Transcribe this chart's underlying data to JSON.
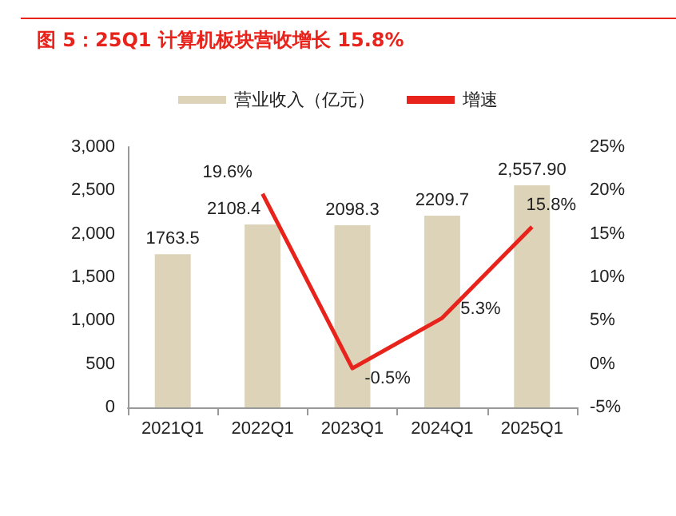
{
  "chart_data": {
    "type": "bar",
    "title": "图 5：25Q1 计算机板块营收增长 15.8%",
    "categories": [
      "2021Q1",
      "2022Q1",
      "2023Q1",
      "2024Q1",
      "2025Q1"
    ],
    "series": [
      {
        "name": "营业收入（亿元）",
        "color": "#ddd3b8",
        "values": [
          1763.5,
          2108.4,
          2098.3,
          2209.7,
          2557.9
        ],
        "value_labels": [
          "1763.5",
          "2108.4",
          "2098.3",
          "2209.7",
          "2,557.90"
        ]
      },
      {
        "name": "增速",
        "type": "line",
        "axis": "y2",
        "color": "#e8231b",
        "values": [
          null,
          19.6,
          -0.5,
          5.3,
          15.8
        ],
        "value_labels": [
          null,
          "19.6%",
          "-0.5%",
          "5.3%",
          "15.8%"
        ]
      }
    ],
    "ylim": [
      0,
      3000
    ],
    "yticks": [
      0,
      500,
      {
        "value": 1000,
        "label": "1,000"
      },
      {
        "value": 1500,
        "label": "1,500"
      },
      {
        "value": 2000,
        "label": "2,000"
      },
      {
        "value": 2500,
        "label": "2,500"
      },
      {
        "value": 3000,
        "label": "3,000"
      }
    ],
    "y2lim": [
      -5,
      25
    ],
    "y2ticks": [
      {
        "value": -5,
        "label": "-5%"
      },
      {
        "value": 0,
        "label": "0%"
      },
      {
        "value": 5,
        "label": "5%"
      },
      {
        "value": 10,
        "label": "10%"
      },
      {
        "value": 15,
        "label": "15%"
      },
      {
        "value": 20,
        "label": "20%"
      },
      {
        "value": 25,
        "label": "25%"
      }
    ],
    "legend": "top",
    "grid": false,
    "marker": "none",
    "line_style": "solid"
  }
}
